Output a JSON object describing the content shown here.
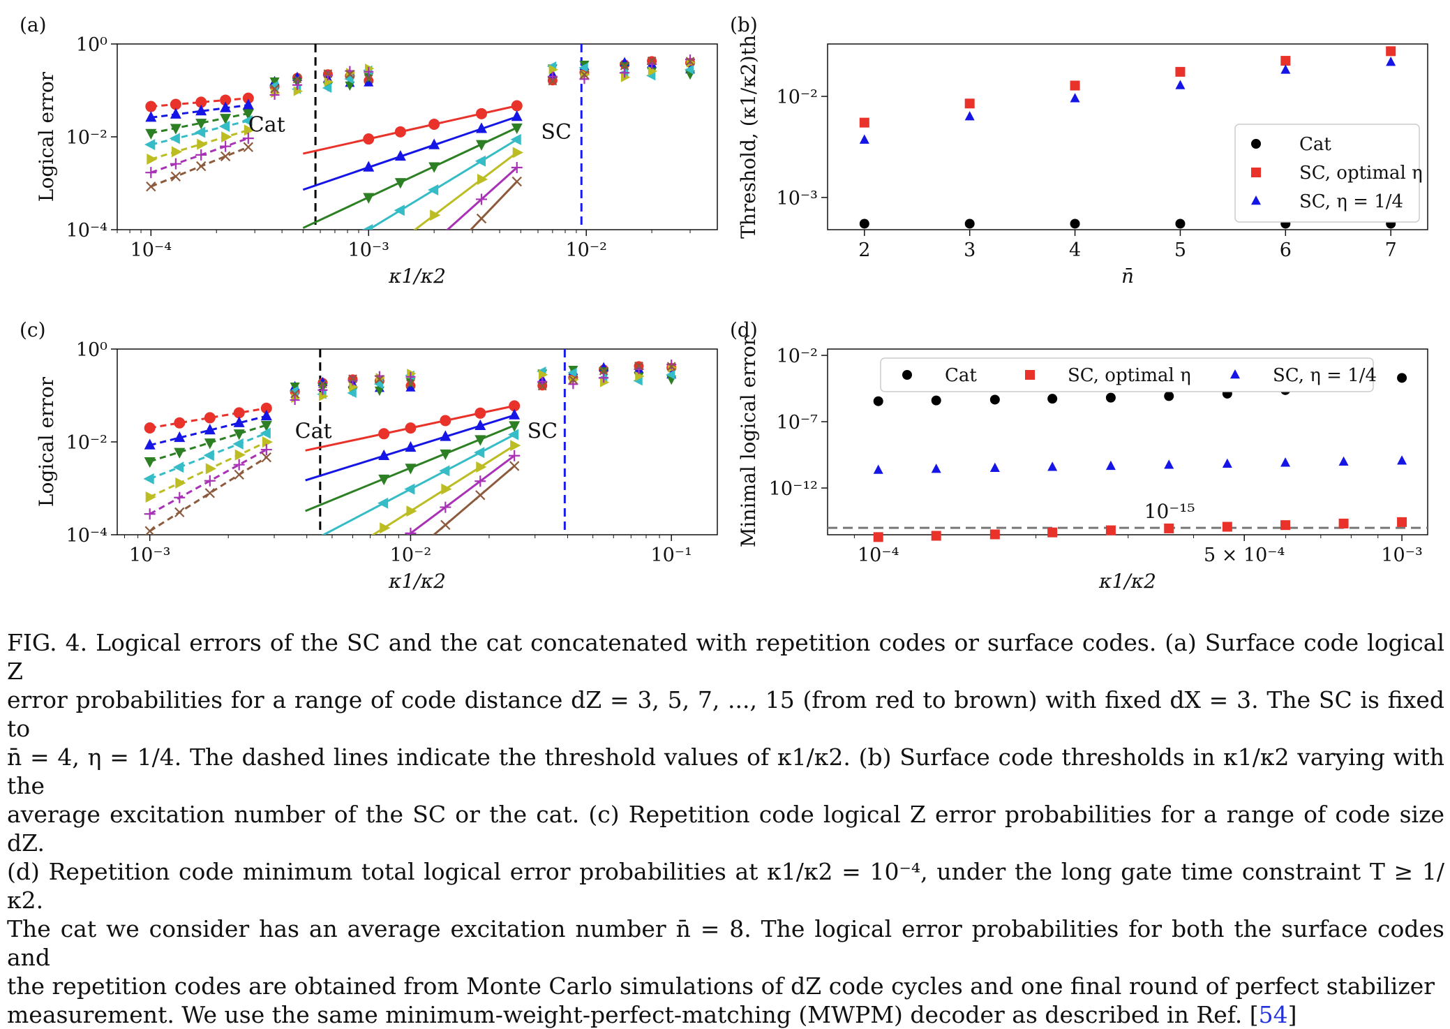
{
  "figure": {
    "panels": [
      {
        "id": "a",
        "label": "(a)",
        "xlabel": "κ1/κ2",
        "ylabel": "Logical error",
        "xticks": [
          {
            "v": 0.0001,
            "label": "10⁻⁴"
          },
          {
            "v": 0.001,
            "label": "10⁻³"
          },
          {
            "v": 0.01,
            "label": "10⁻²"
          }
        ],
        "yticks": [
          {
            "v": 1,
            "label": "10⁰"
          },
          {
            "v": 0.01,
            "label": "10⁻²"
          },
          {
            "v": 0.0001,
            "label": "10⁻⁴"
          }
        ],
        "annotations": [
          {
            "text": "Cat",
            "x": 0.00028,
            "y": 0.013
          },
          {
            "text": "SC",
            "x": 0.0062,
            "y": 0.009
          }
        ]
      },
      {
        "id": "b",
        "label": "(b)",
        "xlabel": "n̄",
        "ylabel": "Threshold, (κ1/κ2)th",
        "xticks": [
          {
            "v": 2,
            "label": "2"
          },
          {
            "v": 3,
            "label": "3"
          },
          {
            "v": 4,
            "label": "4"
          },
          {
            "v": 5,
            "label": "5"
          },
          {
            "v": 6,
            "label": "6"
          },
          {
            "v": 7,
            "label": "7"
          }
        ],
        "yticks": [
          {
            "v": 0.01,
            "label": "10⁻²"
          },
          {
            "v": 0.001,
            "label": "10⁻³"
          }
        ],
        "legend": [
          "Cat",
          "SC, optimal η",
          "SC, η = 1/4"
        ]
      },
      {
        "id": "c",
        "label": "(c)",
        "xlabel": "κ1/κ2",
        "ylabel": "Logical error",
        "xticks": [
          {
            "v": 0.001,
            "label": "10⁻³"
          },
          {
            "v": 0.01,
            "label": "10⁻²"
          },
          {
            "v": 0.1,
            "label": "10⁻¹"
          }
        ],
        "yticks": [
          {
            "v": 1,
            "label": "10⁰"
          },
          {
            "v": 0.01,
            "label": "10⁻²"
          },
          {
            "v": 0.0001,
            "label": "10⁻⁴"
          }
        ],
        "annotations": [
          {
            "text": "Cat",
            "x": 0.0036,
            "y": 0.012
          },
          {
            "text": "SC",
            "x": 0.028,
            "y": 0.012
          }
        ]
      },
      {
        "id": "d",
        "label": "(d)",
        "xlabel": "κ1/κ2",
        "ylabel": "Minimal logical error",
        "xticks": [
          {
            "v": 0.0001,
            "label": "10⁻⁴"
          },
          {
            "v": 0.0005,
            "label": "5 × 10⁻⁴"
          },
          {
            "v": 0.001,
            "label": "10⁻³"
          }
        ],
        "yticks": [
          {
            "v": 0.01,
            "label": "10⁻²"
          },
          {
            "v": 1e-07,
            "label": "10⁻⁷"
          },
          {
            "v": 1e-12,
            "label": "10⁻¹²"
          }
        ],
        "legend": [
          "Cat",
          "SC, optimal η",
          "SC, η = 1/4"
        ],
        "annotations": [
          {
            "text": "10⁻¹⁵",
            "x": 0.00036,
            "y": 3e-15
          }
        ]
      }
    ]
  },
  "chart_data": [
    {
      "panel": "a",
      "type": "line",
      "xscale": "log",
      "yscale": "log",
      "xlim": [
        7e-05,
        0.04
      ],
      "ylim": [
        0.0001,
        1
      ],
      "title": "",
      "xlabel": "κ1/κ2",
      "ylabel": "Logical error",
      "thresholds": [
        {
          "x": 0.00057,
          "color": "#000000"
        },
        {
          "x": 0.0095,
          "color": "#1a1aee"
        }
      ],
      "cat_x": [
        0.0001,
        0.00013,
        0.00017,
        0.00022,
        0.00028
      ],
      "sc_x": [
        0.001,
        0.0014,
        0.002,
        0.0033,
        0.0048
      ],
      "mix_x": [
        0.00037,
        0.00047,
        0.00065,
        0.00082,
        0.001,
        0.007,
        0.0098,
        0.015,
        0.02,
        0.03
      ],
      "series": [
        {
          "name": "d=3",
          "color": "#e8322a",
          "marker": "circle",
          "cat_y0": 0.045,
          "cat_slope": 0.4,
          "sc_y0": 0.009,
          "sc_slope": 1.05
        },
        {
          "name": "d=5",
          "color": "#1515e6",
          "marker": "triangle-up",
          "cat_y0": 0.026,
          "cat_slope": 0.6,
          "sc_y0": 0.0022,
          "sc_slope": 1.6
        },
        {
          "name": "d=7",
          "color": "#2c7f22",
          "marker": "triangle-down",
          "cat_y0": 0.012,
          "cat_slope": 0.95,
          "sc_y0": 0.0005,
          "sc_slope": 2.2
        },
        {
          "name": "d=9",
          "color": "#35bcc6",
          "marker": "triangle-left",
          "cat_y0": 0.0068,
          "cat_slope": 1.15,
          "sc_y0": 0.0001,
          "sc_slope": 2.85
        },
        {
          "name": "d=11",
          "color": "#bcbd22",
          "marker": "triangle-right",
          "cat_y0": 0.0033,
          "cat_slope": 1.4,
          "sc_y0": 1.75e-05,
          "sc_slope": 3.55
        },
        {
          "name": "d=13",
          "color": "#a832b5",
          "marker": "plus",
          "cat_y0": 0.0017,
          "cat_slope": 1.65,
          "sc_y0": 3e-06,
          "sc_slope": 4.2
        },
        {
          "name": "d=15",
          "color": "#8c5a3c",
          "marker": "x",
          "cat_y0": 0.00085,
          "cat_slope": 1.9,
          "sc_y0": 5e-07,
          "sc_slope": 4.9
        }
      ]
    },
    {
      "panel": "b",
      "type": "scatter",
      "xscale": "linear",
      "yscale": "log",
      "xlim": [
        1.65,
        7.35
      ],
      "ylim": [
        0.00048,
        0.033
      ],
      "xlabel": "n̄",
      "ylabel": "Threshold, (κ1/κ2)th",
      "x": [
        2,
        3,
        4,
        5,
        6,
        7
      ],
      "series": [
        {
          "name": "Cat",
          "color": "#000000",
          "marker": "circle",
          "values": [
            0.00055,
            0.00055,
            0.00055,
            0.00055,
            0.00055,
            0.00055
          ]
        },
        {
          "name": "SC, optimal η",
          "color": "#e8322a",
          "marker": "square",
          "values": [
            0.0055,
            0.0085,
            0.0128,
            0.0175,
            0.0225,
            0.028
          ]
        },
        {
          "name": "SC, η = 1/4",
          "color": "#1515e6",
          "marker": "triangle-up",
          "values": [
            0.0037,
            0.0063,
            0.0095,
            0.0128,
            0.0182,
            0.0218
          ]
        }
      ]
    },
    {
      "panel": "c",
      "type": "line",
      "xscale": "log",
      "yscale": "log",
      "xlim": [
        0.00075,
        0.15
      ],
      "ylim": [
        0.0001,
        1
      ],
      "xlabel": "κ1/κ2",
      "ylabel": "Logical error",
      "thresholds": [
        {
          "x": 0.0045,
          "color": "#000000"
        },
        {
          "x": 0.039,
          "color": "#1a1aee"
        }
      ],
      "cat_x": [
        0.001,
        0.0013,
        0.0017,
        0.0022,
        0.0028
      ],
      "sc_x": [
        0.0079,
        0.01,
        0.0136,
        0.0185,
        0.025
      ],
      "mix_x": [
        0.0036,
        0.0046,
        0.006,
        0.0076,
        0.01,
        0.032,
        0.042,
        0.055,
        0.075,
        0.1
      ],
      "series": [
        {
          "name": "d=3",
          "color": "#e8322a",
          "marker": "circle",
          "cat_y0": 0.02,
          "cat_slope": 0.95,
          "sc_y0": 0.015,
          "sc_slope": 1.2
        },
        {
          "name": "d=5",
          "color": "#1515e6",
          "marker": "triangle-up",
          "cat_y0": 0.0085,
          "cat_slope": 1.4,
          "sc_y0": 0.005,
          "sc_slope": 1.75
        },
        {
          "name": "d=7",
          "color": "#2c7f22",
          "marker": "triangle-down",
          "cat_y0": 0.0038,
          "cat_slope": 1.75,
          "sc_y0": 0.0016,
          "sc_slope": 2.3
        },
        {
          "name": "d=9",
          "color": "#35bcc6",
          "marker": "triangle-left",
          "cat_y0": 0.0016,
          "cat_slope": 2.2,
          "sc_y0": 0.00048,
          "sc_slope": 2.95
        },
        {
          "name": "d=11",
          "color": "#bcbd22",
          "marker": "triangle-right",
          "cat_y0": 0.00065,
          "cat_slope": 2.65,
          "sc_y0": 0.00014,
          "sc_slope": 3.55
        },
        {
          "name": "d=13",
          "color": "#a832b5",
          "marker": "plus",
          "cat_y0": 0.00028,
          "cat_slope": 3.1,
          "sc_y0": 4e-05,
          "sc_slope": 4.2
        },
        {
          "name": "d=15",
          "color": "#8c5a3c",
          "marker": "x",
          "cat_y0": 0.00012,
          "cat_slope": 3.55,
          "sc_y0": 1.2e-05,
          "sc_slope": 4.8
        }
      ]
    },
    {
      "panel": "d",
      "type": "scatter",
      "xscale": "log",
      "yscale": "log",
      "xlim": [
        8e-05,
        0.00112
      ],
      "ylim": [
        3e-16,
        0.03
      ],
      "xlabel": "κ1/κ2",
      "ylabel": "Minimal logical error",
      "hline": {
        "y": 1e-15,
        "label": "10⁻¹⁵"
      },
      "x": [
        0.0001,
        0.000129,
        0.000167,
        0.000215,
        0.000278,
        0.000359,
        0.000464,
        0.000599,
        0.000774,
        0.001
      ],
      "series": [
        {
          "name": "Cat",
          "color": "#000000",
          "marker": "circle",
          "values": [
            3.5e-06,
            4e-06,
            4.6e-06,
            5.4e-06,
            6.5e-06,
            8.5e-06,
            1.3e-05,
            2.4e-05,
            5.5e-05,
            0.0002
          ]
        },
        {
          "name": "SC, optimal η",
          "color": "#e8322a",
          "marker": "square",
          "values": [
            2e-16,
            2.5e-16,
            3.2e-16,
            4.5e-16,
            6.5e-16,
            9e-16,
            1.2e-15,
            1.6e-15,
            2.1e-15,
            2.7e-15
          ]
        },
        {
          "name": "SC, η = 1/4",
          "color": "#1515e6",
          "marker": "triangle-up",
          "values": [
            2.2e-11,
            2.6e-11,
            3.1e-11,
            3.7e-11,
            4.4e-11,
            5.3e-11,
            6.4e-11,
            7.7e-11,
            9.2e-11,
            1.1e-10
          ]
        }
      ]
    }
  ],
  "caption": {
    "fig_label": "FIG. 4.",
    "line1": "Logical errors of the SC and the cat concatenated with repetition codes or surface codes. (a) Surface code logical Z",
    "line2": "error probabilities for a range of code distance dZ = 3, 5, 7, ..., 15 (from red to brown) with fixed dX = 3. The SC is fixed to",
    "line3": "n̄ = 4, η = 1/4. The dashed lines indicate the threshold values of κ1/κ2. (b) Surface code thresholds in κ1/κ2 varying with the",
    "line4": "average excitation number of the SC or the cat. (c) Repetition code logical Z error probabilities for a range of code size dZ.",
    "line5": "(d) Repetition code minimum total logical error probabilities at κ1/κ2 = 10⁻⁴, under the long gate time constraint T ≥ 1/κ2.",
    "line6": "The cat we consider has an average excitation number n̄ = 8. The logical error probabilities for both the surface codes and",
    "line7": "the repetition codes are obtained from Monte Carlo simulations of dZ code cycles and one final round of perfect stabilizer",
    "line8": "measurement. We use the same minimum-weight-perfect-matching (MWPM) decoder as described in Ref. [",
    "ref": "54",
    "line8_end": "]"
  }
}
